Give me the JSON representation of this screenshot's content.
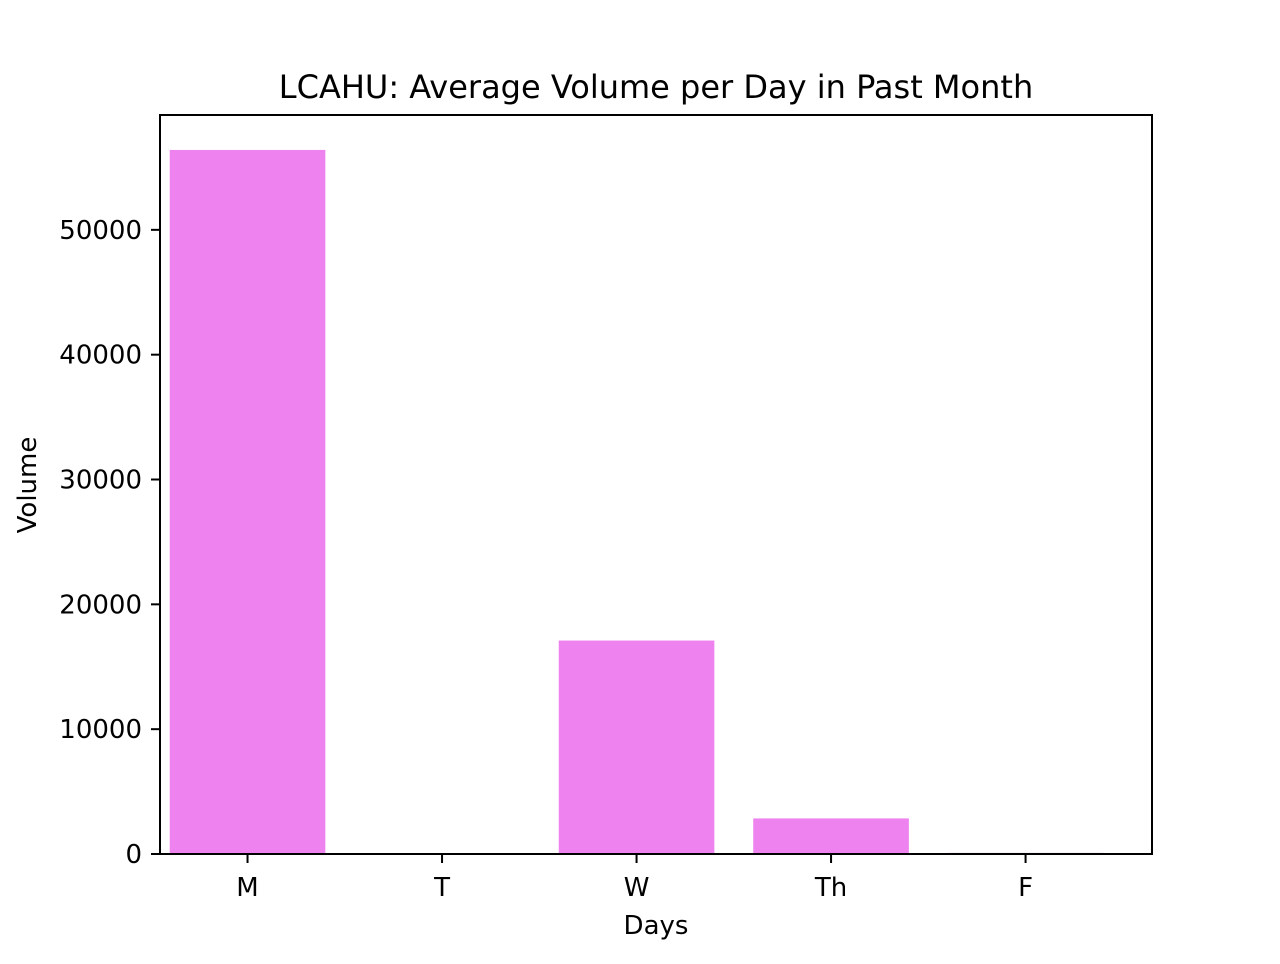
{
  "chart_data": {
    "type": "bar",
    "title": "LCAHU: Average Volume per Day in Past Month",
    "xlabel": "Days",
    "ylabel": "Volume",
    "categories": [
      "M",
      "T",
      "W",
      "Th",
      "F"
    ],
    "values": [
      56400,
      0,
      17100,
      2850,
      90
    ],
    "ylim": [
      0,
      59200
    ],
    "yticks": [
      0,
      10000,
      20000,
      30000,
      40000,
      50000
    ],
    "ytick_labels": [
      "0",
      "10000",
      "20000",
      "30000",
      "40000",
      "50000"
    ],
    "grid": false,
    "legend": "none",
    "bar_color": "#ee82ee"
  }
}
